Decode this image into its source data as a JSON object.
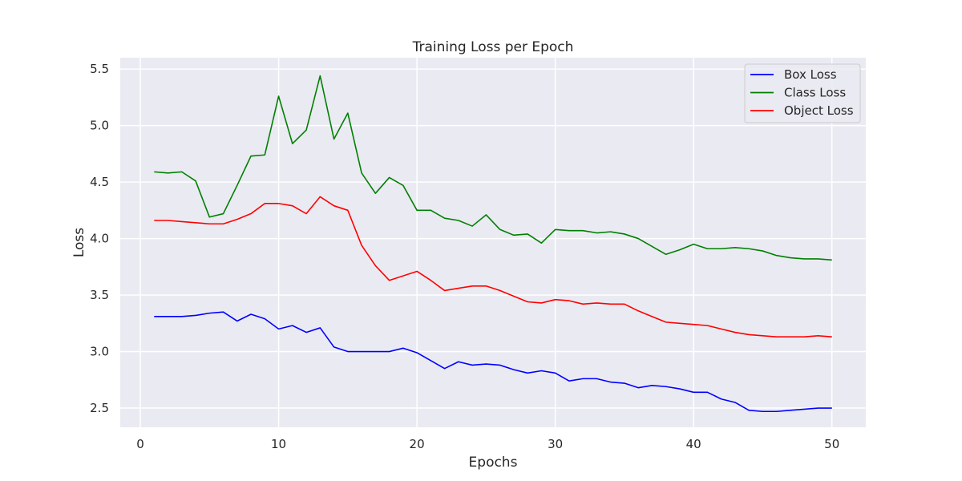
{
  "chart_data": {
    "type": "line",
    "title": "Training Loss per Epoch",
    "xlabel": "Epochs",
    "ylabel": "Loss",
    "xlim": [
      -1.45,
      52.45
    ],
    "ylim": [
      2.33,
      5.6
    ],
    "xticks": [
      0,
      10,
      20,
      30,
      40,
      50
    ],
    "yticks": [
      2.5,
      3.0,
      3.5,
      4.0,
      4.5,
      5.0,
      5.5
    ],
    "ytick_labels": [
      "2.5",
      "3.0",
      "3.5",
      "4.0",
      "4.5",
      "5.0",
      "5.5"
    ],
    "grid": true,
    "legend_position": "top-right",
    "x": [
      1,
      2,
      3,
      4,
      5,
      6,
      7,
      8,
      9,
      10,
      11,
      12,
      13,
      14,
      15,
      16,
      17,
      18,
      19,
      20,
      21,
      22,
      23,
      24,
      25,
      26,
      27,
      28,
      29,
      30,
      31,
      32,
      33,
      34,
      35,
      36,
      37,
      38,
      39,
      40,
      41,
      42,
      43,
      44,
      45,
      46,
      47,
      48,
      49,
      50
    ],
    "series": [
      {
        "name": "Box Loss",
        "color": "#0000ff",
        "values": [
          3.31,
          3.31,
          3.31,
          3.32,
          3.34,
          3.35,
          3.27,
          3.33,
          3.29,
          3.2,
          3.23,
          3.17,
          3.21,
          3.04,
          3.0,
          3.0,
          3.0,
          3.0,
          3.03,
          2.99,
          2.92,
          2.85,
          2.91,
          2.88,
          2.89,
          2.88,
          2.84,
          2.81,
          2.83,
          2.81,
          2.74,
          2.76,
          2.76,
          2.73,
          2.72,
          2.68,
          2.7,
          2.69,
          2.67,
          2.64,
          2.64,
          2.58,
          2.55,
          2.48,
          2.47,
          2.47,
          2.48,
          2.49,
          2.5,
          2.5
        ]
      },
      {
        "name": "Class Loss",
        "color": "#008000",
        "values": [
          4.59,
          4.58,
          4.59,
          4.51,
          4.19,
          4.22,
          4.47,
          4.73,
          4.74,
          5.26,
          4.84,
          4.96,
          5.44,
          4.88,
          5.11,
          4.58,
          4.4,
          4.54,
          4.47,
          4.25,
          4.25,
          4.18,
          4.16,
          4.11,
          4.21,
          4.08,
          4.03,
          4.04,
          3.96,
          4.08,
          4.07,
          4.07,
          4.05,
          4.06,
          4.04,
          4.0,
          3.93,
          3.86,
          3.9,
          3.95,
          3.91,
          3.91,
          3.92,
          3.91,
          3.89,
          3.85,
          3.83,
          3.82,
          3.82,
          3.81
        ]
      },
      {
        "name": "Object Loss",
        "color": "#ff0000",
        "values": [
          4.16,
          4.16,
          4.15,
          4.14,
          4.13,
          4.13,
          4.17,
          4.22,
          4.31,
          4.31,
          4.29,
          4.22,
          4.37,
          4.29,
          4.25,
          3.94,
          3.76,
          3.63,
          3.67,
          3.71,
          3.63,
          3.54,
          3.56,
          3.58,
          3.58,
          3.54,
          3.49,
          3.44,
          3.43,
          3.46,
          3.45,
          3.42,
          3.43,
          3.42,
          3.42,
          3.36,
          3.31,
          3.26,
          3.25,
          3.24,
          3.23,
          3.2,
          3.17,
          3.15,
          3.14,
          3.13,
          3.13,
          3.13,
          3.14,
          3.13
        ]
      }
    ]
  }
}
